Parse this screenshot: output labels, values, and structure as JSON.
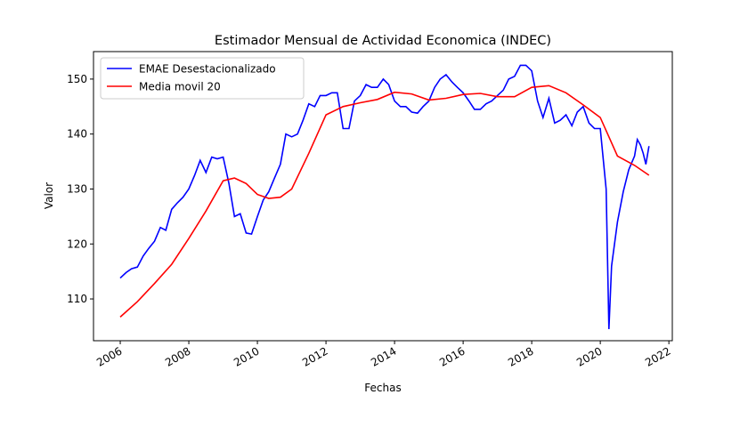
{
  "chart_data": {
    "type": "line",
    "title": "Estimador Mensual de Actividad Economica (INDEC)",
    "x_label": "Fechas",
    "y_label": "Valor",
    "xlim": [
      2005.22,
      2022.1
    ],
    "xticks": [
      2006,
      2008,
      2010,
      2012,
      2014,
      2016,
      2018,
      2020,
      2022
    ],
    "ylim": [
      102.4,
      155.0
    ],
    "yticks": [
      110,
      120,
      130,
      140,
      150
    ],
    "legend": "upper left",
    "series": [
      {
        "name": "EMAE Desestacionalizado",
        "color": "#0000ff",
        "x": [
          2006.0,
          2006.17,
          2006.33,
          2006.5,
          2006.67,
          2006.83,
          2007.0,
          2007.17,
          2007.33,
          2007.5,
          2007.67,
          2007.83,
          2008.0,
          2008.17,
          2008.33,
          2008.5,
          2008.67,
          2008.83,
          2009.0,
          2009.17,
          2009.33,
          2009.5,
          2009.67,
          2009.83,
          2010.0,
          2010.17,
          2010.33,
          2010.5,
          2010.67,
          2010.83,
          2011.0,
          2011.17,
          2011.33,
          2011.5,
          2011.67,
          2011.83,
          2012.0,
          2012.17,
          2012.33,
          2012.5,
          2012.67,
          2012.83,
          2013.0,
          2013.17,
          2013.33,
          2013.5,
          2013.67,
          2013.83,
          2014.0,
          2014.17,
          2014.33,
          2014.5,
          2014.67,
          2014.83,
          2015.0,
          2015.17,
          2015.33,
          2015.5,
          2015.67,
          2015.83,
          2016.0,
          2016.17,
          2016.33,
          2016.5,
          2016.67,
          2016.83,
          2017.0,
          2017.17,
          2017.33,
          2017.5,
          2017.67,
          2017.83,
          2018.0,
          2018.17,
          2018.33,
          2018.5,
          2018.67,
          2018.83,
          2019.0,
          2019.17,
          2019.33,
          2019.5,
          2019.67,
          2019.83,
          2020.0,
          2020.17,
          2020.25,
          2020.33,
          2020.5,
          2020.67,
          2020.83,
          2021.0,
          2021.08,
          2021.17,
          2021.25,
          2021.33,
          2021.42
        ],
        "values": [
          113.8,
          114.8,
          115.5,
          115.8,
          117.8,
          119.2,
          120.5,
          123,
          122.5,
          126.3,
          127.5,
          128.5,
          130,
          132.5,
          135.2,
          133,
          135.8,
          135.5,
          135.8,
          131,
          125,
          125.5,
          122,
          121.8,
          125,
          128,
          129.5,
          132,
          134.5,
          140,
          139.5,
          140,
          142.5,
          145.5,
          145,
          147,
          147,
          147.5,
          147.5,
          141,
          141,
          146,
          147,
          149,
          148.5,
          148.5,
          150,
          149,
          146,
          145,
          145,
          144,
          143.8,
          145,
          146,
          148.5,
          150,
          150.8,
          149.5,
          148.5,
          147.5,
          146,
          144.5,
          144.5,
          145.5,
          146,
          147,
          148,
          150,
          150.5,
          152.5,
          152.5,
          151.5,
          146,
          143,
          146.5,
          142,
          142.5,
          143.5,
          141.5,
          144,
          145,
          142,
          141,
          141,
          130,
          104.5,
          116,
          124,
          129.5,
          133.5,
          136,
          139,
          138,
          136.5,
          134.5,
          137.8
        ]
      },
      {
        "name": "Media movil 20",
        "color": "#ff0000",
        "x": [
          2006.0,
          2006.5,
          2007.0,
          2007.5,
          2008.0,
          2008.5,
          2009.0,
          2009.33,
          2009.67,
          2010.0,
          2010.33,
          2010.67,
          2011.0,
          2011.5,
          2012.0,
          2012.5,
          2013.0,
          2013.5,
          2014.0,
          2014.5,
          2015.0,
          2015.5,
          2016.0,
          2016.5,
          2017.0,
          2017.5,
          2018.0,
          2018.5,
          2019.0,
          2019.5,
          2020.0,
          2020.25,
          2020.5,
          2021.0,
          2021.42
        ],
        "values": [
          106.7,
          109.5,
          112.8,
          116.3,
          121,
          126,
          131.5,
          132,
          131,
          129,
          128.3,
          128.5,
          130,
          136.5,
          143.5,
          145,
          145.7,
          146.3,
          147.6,
          147.3,
          146.2,
          146.5,
          147.2,
          147.4,
          146.8,
          146.8,
          148.5,
          148.8,
          147.5,
          145.3,
          143,
          139.5,
          136,
          134.3,
          132.5
        ]
      }
    ]
  }
}
